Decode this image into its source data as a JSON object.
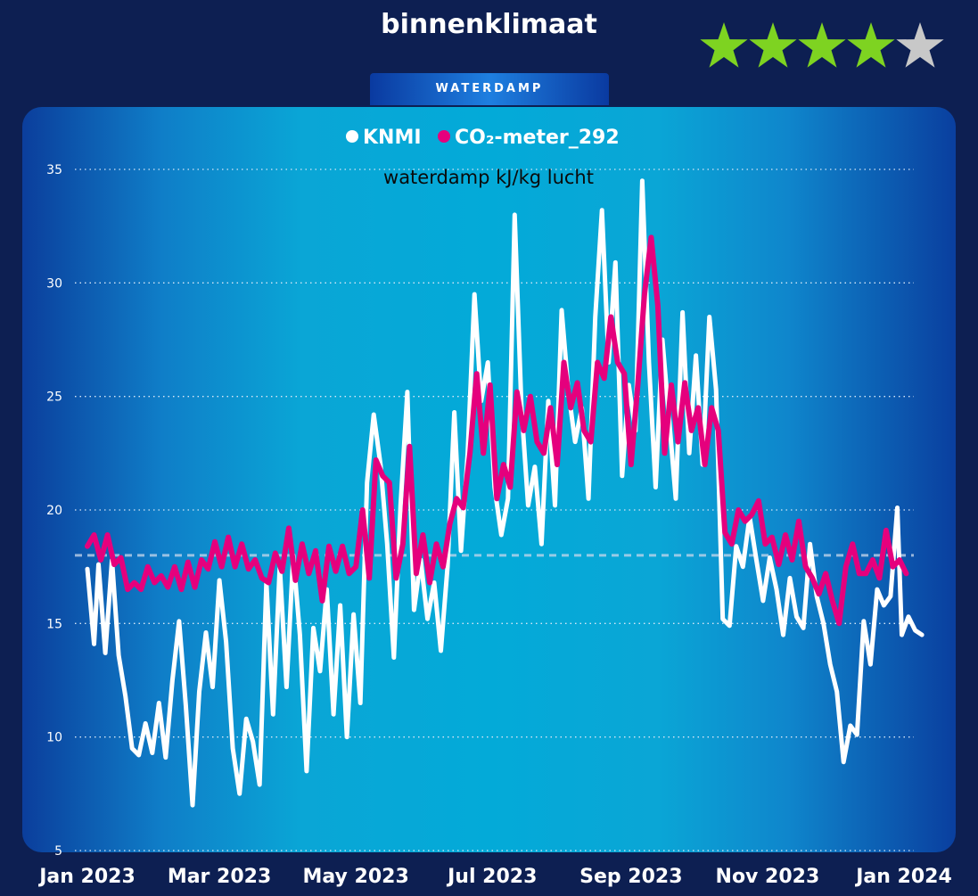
{
  "header": {
    "title": "binnenklimaat",
    "rating": {
      "value": 4,
      "max": 5,
      "filled_color": "#7ed321",
      "empty_color": "#c8c8c8"
    },
    "tab_label": "WATERDAMP"
  },
  "chart_data": {
    "type": "line",
    "title": "waterdamp kJ/kg lucht",
    "xlabel": "",
    "ylabel": "",
    "ylim": [
      5,
      35
    ],
    "xlim": [
      "2023-01-01",
      "2024-01-01"
    ],
    "y_ticks": [
      5,
      10,
      15,
      20,
      25,
      30,
      35
    ],
    "x_ticks": [
      {
        "date": "2023-01-01",
        "label": "Jan 2023"
      },
      {
        "date": "2023-03-01",
        "label": "Mar 2023"
      },
      {
        "date": "2023-05-01",
        "label": "May 2023"
      },
      {
        "date": "2023-07-01",
        "label": "Jul 2023"
      },
      {
        "date": "2023-09-01",
        "label": "Sep 2023"
      },
      {
        "date": "2023-11-01",
        "label": "Nov 2023"
      },
      {
        "date": "2024-01-01",
        "label": "Jan 2024"
      }
    ],
    "grid": true,
    "legend_position": "top-center",
    "reference_line": {
      "y": 18,
      "style": "dashed",
      "color": "#c8d8ec"
    },
    "series": [
      {
        "name": "KNMI",
        "color": "#ffffff",
        "points": [
          [
            "2023-01-01",
            17.4
          ],
          [
            "2023-01-04",
            14.1
          ],
          [
            "2023-01-06",
            17.6
          ],
          [
            "2023-01-09",
            13.7
          ],
          [
            "2023-01-12",
            17.8
          ],
          [
            "2023-01-15",
            13.6
          ],
          [
            "2023-01-18",
            11.8
          ],
          [
            "2023-01-21",
            9.5
          ],
          [
            "2023-01-24",
            9.2
          ],
          [
            "2023-01-27",
            10.6
          ],
          [
            "2023-01-30",
            9.3
          ],
          [
            "2023-02-02",
            11.5
          ],
          [
            "2023-02-05",
            9.1
          ],
          [
            "2023-02-08",
            12.5
          ],
          [
            "2023-02-11",
            15.1
          ],
          [
            "2023-02-14",
            11.4
          ],
          [
            "2023-02-17",
            7.0
          ],
          [
            "2023-02-20",
            12.0
          ],
          [
            "2023-02-23",
            14.6
          ],
          [
            "2023-02-26",
            12.2
          ],
          [
            "2023-03-01",
            16.9
          ],
          [
            "2023-03-04",
            14.2
          ],
          [
            "2023-03-07",
            9.5
          ],
          [
            "2023-03-10",
            7.5
          ],
          [
            "2023-03-13",
            10.8
          ],
          [
            "2023-03-16",
            9.8
          ],
          [
            "2023-03-19",
            7.9
          ],
          [
            "2023-03-22",
            16.8
          ],
          [
            "2023-03-25",
            11.0
          ],
          [
            "2023-03-28",
            17.5
          ],
          [
            "2023-03-31",
            12.2
          ],
          [
            "2023-04-03",
            18.0
          ],
          [
            "2023-04-06",
            14.5
          ],
          [
            "2023-04-09",
            8.5
          ],
          [
            "2023-04-12",
            14.8
          ],
          [
            "2023-04-15",
            12.9
          ],
          [
            "2023-04-18",
            16.5
          ],
          [
            "2023-04-21",
            11.0
          ],
          [
            "2023-04-24",
            15.8
          ],
          [
            "2023-04-27",
            10.0
          ],
          [
            "2023-04-30",
            15.4
          ],
          [
            "2023-05-03",
            11.5
          ],
          [
            "2023-05-06",
            21.2
          ],
          [
            "2023-05-09",
            24.2
          ],
          [
            "2023-05-12",
            22.0
          ],
          [
            "2023-05-15",
            18.5
          ],
          [
            "2023-05-18",
            13.5
          ],
          [
            "2023-05-21",
            20.2
          ],
          [
            "2023-05-24",
            25.2
          ],
          [
            "2023-05-27",
            15.6
          ],
          [
            "2023-05-30",
            17.8
          ],
          [
            "2023-06-02",
            15.2
          ],
          [
            "2023-06-05",
            16.8
          ],
          [
            "2023-06-08",
            13.8
          ],
          [
            "2023-06-11",
            17.5
          ],
          [
            "2023-06-14",
            24.3
          ],
          [
            "2023-06-17",
            18.2
          ],
          [
            "2023-06-20",
            22.5
          ],
          [
            "2023-06-23",
            29.5
          ],
          [
            "2023-06-26",
            24.8
          ],
          [
            "2023-06-29",
            26.5
          ],
          [
            "2023-07-02",
            21.0
          ],
          [
            "2023-07-05",
            18.9
          ],
          [
            "2023-07-08",
            20.5
          ],
          [
            "2023-07-11",
            33.0
          ],
          [
            "2023-07-14",
            24.5
          ],
          [
            "2023-07-17",
            20.2
          ],
          [
            "2023-07-20",
            21.9
          ],
          [
            "2023-07-23",
            18.5
          ],
          [
            "2023-07-26",
            24.8
          ],
          [
            "2023-07-29",
            20.2
          ],
          [
            "2023-08-01",
            28.8
          ],
          [
            "2023-08-04",
            25.2
          ],
          [
            "2023-08-07",
            23.0
          ],
          [
            "2023-08-10",
            24.5
          ],
          [
            "2023-08-13",
            20.5
          ],
          [
            "2023-08-16",
            28.5
          ],
          [
            "2023-08-19",
            33.2
          ],
          [
            "2023-08-22",
            26.5
          ],
          [
            "2023-08-25",
            30.9
          ],
          [
            "2023-08-28",
            21.5
          ],
          [
            "2023-08-31",
            25.5
          ],
          [
            "2023-09-03",
            23.5
          ],
          [
            "2023-09-06",
            34.5
          ],
          [
            "2023-09-09",
            26.5
          ],
          [
            "2023-09-12",
            21.0
          ],
          [
            "2023-09-15",
            27.5
          ],
          [
            "2023-09-18",
            24.0
          ],
          [
            "2023-09-21",
            20.5
          ],
          [
            "2023-09-24",
            28.7
          ],
          [
            "2023-09-27",
            22.5
          ],
          [
            "2023-09-30",
            26.8
          ],
          [
            "2023-10-03",
            22.0
          ],
          [
            "2023-10-06",
            28.5
          ],
          [
            "2023-10-09",
            25.3
          ],
          [
            "2023-10-12",
            15.2
          ],
          [
            "2023-10-15",
            14.9
          ],
          [
            "2023-10-18",
            18.4
          ],
          [
            "2023-10-21",
            17.5
          ],
          [
            "2023-10-24",
            19.7
          ],
          [
            "2023-10-27",
            17.8
          ],
          [
            "2023-10-30",
            16.0
          ],
          [
            "2023-11-02",
            17.9
          ],
          [
            "2023-11-05",
            16.5
          ],
          [
            "2023-11-08",
            14.5
          ],
          [
            "2023-11-11",
            17.0
          ],
          [
            "2023-11-14",
            15.3
          ],
          [
            "2023-11-17",
            14.8
          ],
          [
            "2023-11-20",
            18.5
          ],
          [
            "2023-11-23",
            16.2
          ],
          [
            "2023-11-26",
            15.0
          ],
          [
            "2023-11-29",
            13.2
          ],
          [
            "2023-12-02",
            12.0
          ],
          [
            "2023-12-05",
            8.9
          ],
          [
            "2023-12-08",
            10.5
          ],
          [
            "2023-12-11",
            10.1
          ],
          [
            "2023-12-14",
            15.1
          ],
          [
            "2023-12-17",
            13.2
          ],
          [
            "2023-12-20",
            16.5
          ],
          [
            "2023-12-23",
            15.8
          ],
          [
            "2023-12-26",
            16.2
          ],
          [
            "2023-12-29",
            20.1
          ],
          [
            "2023-12-31",
            14.5
          ],
          [
            "2024-01-03",
            15.3
          ],
          [
            "2024-01-06",
            14.7
          ],
          [
            "2024-01-09",
            14.5
          ]
        ]
      },
      {
        "name": "CO₂-meter_292",
        "color": "#e5007d",
        "points": [
          [
            "2023-01-01",
            18.4
          ],
          [
            "2023-01-04",
            18.9
          ],
          [
            "2023-01-07",
            17.8
          ],
          [
            "2023-01-10",
            18.9
          ],
          [
            "2023-01-13",
            17.6
          ],
          [
            "2023-01-16",
            17.9
          ],
          [
            "2023-01-19",
            16.5
          ],
          [
            "2023-01-22",
            16.8
          ],
          [
            "2023-01-25",
            16.5
          ],
          [
            "2023-01-28",
            17.5
          ],
          [
            "2023-01-31",
            16.8
          ],
          [
            "2023-02-03",
            17.1
          ],
          [
            "2023-02-06",
            16.6
          ],
          [
            "2023-02-09",
            17.5
          ],
          [
            "2023-02-12",
            16.5
          ],
          [
            "2023-02-15",
            17.7
          ],
          [
            "2023-02-18",
            16.6
          ],
          [
            "2023-02-21",
            17.8
          ],
          [
            "2023-02-24",
            17.4
          ],
          [
            "2023-02-27",
            18.6
          ],
          [
            "2023-03-02",
            17.5
          ],
          [
            "2023-03-05",
            18.8
          ],
          [
            "2023-03-08",
            17.5
          ],
          [
            "2023-03-11",
            18.5
          ],
          [
            "2023-03-14",
            17.4
          ],
          [
            "2023-03-17",
            17.8
          ],
          [
            "2023-03-20",
            17.0
          ],
          [
            "2023-03-23",
            16.8
          ],
          [
            "2023-03-26",
            18.1
          ],
          [
            "2023-03-29",
            17.3
          ],
          [
            "2023-04-01",
            19.2
          ],
          [
            "2023-04-04",
            16.9
          ],
          [
            "2023-04-07",
            18.5
          ],
          [
            "2023-04-10",
            17.2
          ],
          [
            "2023-04-13",
            18.2
          ],
          [
            "2023-04-16",
            16.0
          ],
          [
            "2023-04-19",
            18.4
          ],
          [
            "2023-04-22",
            17.3
          ],
          [
            "2023-04-25",
            18.4
          ],
          [
            "2023-04-28",
            17.2
          ],
          [
            "2023-05-01",
            17.5
          ],
          [
            "2023-05-04",
            20.0
          ],
          [
            "2023-05-07",
            17.0
          ],
          [
            "2023-05-10",
            22.2
          ],
          [
            "2023-05-13",
            21.5
          ],
          [
            "2023-05-16",
            21.2
          ],
          [
            "2023-05-19",
            17.0
          ],
          [
            "2023-05-22",
            18.5
          ],
          [
            "2023-05-25",
            22.8
          ],
          [
            "2023-05-28",
            17.2
          ],
          [
            "2023-05-31",
            18.9
          ],
          [
            "2023-06-03",
            16.8
          ],
          [
            "2023-06-06",
            18.5
          ],
          [
            "2023-06-09",
            17.5
          ],
          [
            "2023-06-12",
            19.4
          ],
          [
            "2023-06-15",
            20.5
          ],
          [
            "2023-06-18",
            20.1
          ],
          [
            "2023-06-21",
            22.5
          ],
          [
            "2023-06-24",
            26.0
          ],
          [
            "2023-06-27",
            22.5
          ],
          [
            "2023-06-30",
            25.5
          ],
          [
            "2023-07-03",
            20.5
          ],
          [
            "2023-07-06",
            22.0
          ],
          [
            "2023-07-09",
            21.0
          ],
          [
            "2023-07-12",
            25.2
          ],
          [
            "2023-07-15",
            23.5
          ],
          [
            "2023-07-18",
            25.0
          ],
          [
            "2023-07-21",
            23.0
          ],
          [
            "2023-07-24",
            22.5
          ],
          [
            "2023-07-27",
            24.5
          ],
          [
            "2023-07-30",
            22.0
          ],
          [
            "2023-08-02",
            26.5
          ],
          [
            "2023-08-05",
            24.5
          ],
          [
            "2023-08-08",
            25.6
          ],
          [
            "2023-08-11",
            23.5
          ],
          [
            "2023-08-14",
            23.0
          ],
          [
            "2023-08-17",
            26.5
          ],
          [
            "2023-08-20",
            25.8
          ],
          [
            "2023-08-23",
            28.5
          ],
          [
            "2023-08-26",
            26.5
          ],
          [
            "2023-08-29",
            26.0
          ],
          [
            "2023-09-01",
            22.0
          ],
          [
            "2023-09-04",
            25.5
          ],
          [
            "2023-09-07",
            29.5
          ],
          [
            "2023-09-10",
            32.0
          ],
          [
            "2023-09-13",
            29.0
          ],
          [
            "2023-09-16",
            22.5
          ],
          [
            "2023-09-19",
            25.5
          ],
          [
            "2023-09-22",
            23.0
          ],
          [
            "2023-09-25",
            25.6
          ],
          [
            "2023-09-28",
            23.5
          ],
          [
            "2023-10-01",
            24.5
          ],
          [
            "2023-10-04",
            22.0
          ],
          [
            "2023-10-07",
            24.5
          ],
          [
            "2023-10-10",
            23.5
          ],
          [
            "2023-10-13",
            19.0
          ],
          [
            "2023-10-16",
            18.5
          ],
          [
            "2023-10-19",
            20.0
          ],
          [
            "2023-10-22",
            19.5
          ],
          [
            "2023-10-25",
            19.8
          ],
          [
            "2023-10-28",
            20.4
          ],
          [
            "2023-10-31",
            18.5
          ],
          [
            "2023-11-03",
            18.8
          ],
          [
            "2023-11-06",
            17.6
          ],
          [
            "2023-11-09",
            18.9
          ],
          [
            "2023-11-12",
            17.8
          ],
          [
            "2023-11-15",
            19.5
          ],
          [
            "2023-11-18",
            17.5
          ],
          [
            "2023-11-21",
            17.0
          ],
          [
            "2023-11-24",
            16.3
          ],
          [
            "2023-11-27",
            17.2
          ],
          [
            "2023-11-30",
            16.0
          ],
          [
            "2023-12-03",
            15.0
          ],
          [
            "2023-12-06",
            17.5
          ],
          [
            "2023-12-09",
            18.5
          ],
          [
            "2023-12-12",
            17.2
          ],
          [
            "2023-12-15",
            17.2
          ],
          [
            "2023-12-18",
            17.8
          ],
          [
            "2023-12-21",
            17.0
          ],
          [
            "2023-12-24",
            19.1
          ],
          [
            "2023-12-27",
            17.5
          ],
          [
            "2023-12-30",
            17.8
          ],
          [
            "2024-01-02",
            17.2
          ]
        ]
      }
    ]
  }
}
